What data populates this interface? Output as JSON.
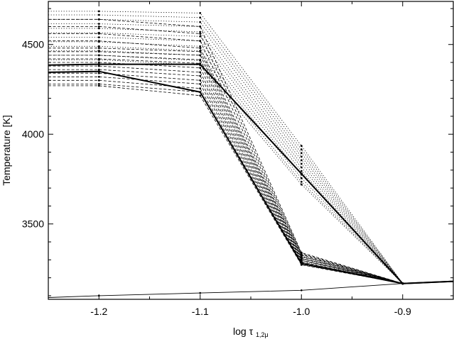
{
  "chart_data": {
    "type": "line",
    "title": "",
    "xlabel_main": "log  τ",
    "xlabel_sub": "1,2μ",
    "ylabel": "Temperature [K]",
    "xlim": [
      -1.25,
      -0.85
    ],
    "ylim": [
      3080,
      4740
    ],
    "xticks": [
      -1.2,
      -1.1,
      -1.0,
      -0.9
    ],
    "xtick_labels": [
      "-1.2",
      "-1.1",
      "-1.0",
      "-0.9"
    ],
    "yticks": [
      3500,
      4000,
      4500
    ],
    "ytick_labels": [
      "3500",
      "4000",
      "4500"
    ],
    "grid": false,
    "legend": "none",
    "series": [
      {
        "style": "thin-solid",
        "x": [
          -1.25,
          -1.2,
          -1.1,
          -1.0,
          -0.9,
          -0.85
        ],
        "y": [
          3090,
          3100,
          3115,
          3130,
          3168,
          3180
        ]
      },
      {
        "style": "thick-solid",
        "x": [
          -1.25,
          -1.2,
          -1.1,
          -1.0,
          -0.9,
          -0.85
        ],
        "y": [
          4385,
          4390,
          4390,
          3780,
          3168,
          3180
        ]
      },
      {
        "style": "thick-solid",
        "x": [
          -1.25,
          -1.2,
          -1.1,
          -1.0,
          -0.9,
          -0.85
        ],
        "y": [
          4345,
          4350,
          4235,
          3280,
          3168,
          3180
        ]
      },
      {
        "style": "dotted",
        "x": [
          -1.25,
          -1.2,
          -1.1,
          -1.0,
          -0.9
        ],
        "y": [
          4685,
          4685,
          4675,
          3935,
          3168
        ]
      },
      {
        "style": "dotted",
        "x": [
          -1.25,
          -1.2,
          -1.1,
          -1.0,
          -0.9
        ],
        "y": [
          4665,
          4665,
          4650,
          3915,
          3168
        ]
      },
      {
        "style": "dotted",
        "x": [
          -1.25,
          -1.2,
          -1.1,
          -1.0,
          -0.9
        ],
        "y": [
          4640,
          4640,
          4625,
          3895,
          3168
        ]
      },
      {
        "style": "dotted",
        "x": [
          -1.25,
          -1.2,
          -1.1,
          -1.0,
          -0.9
        ],
        "y": [
          4615,
          4615,
          4600,
          3875,
          3168
        ]
      },
      {
        "style": "dotted",
        "x": [
          -1.25,
          -1.2,
          -1.1,
          -1.0,
          -0.9
        ],
        "y": [
          4590,
          4590,
          4570,
          3855,
          3168
        ]
      },
      {
        "style": "dotted",
        "x": [
          -1.25,
          -1.2,
          -1.1,
          -1.0,
          -0.9
        ],
        "y": [
          4565,
          4565,
          4545,
          3835,
          3168
        ]
      },
      {
        "style": "dotted",
        "x": [
          -1.25,
          -1.2,
          -1.1,
          -1.0,
          -0.9
        ],
        "y": [
          4540,
          4540,
          4520,
          3815,
          3168
        ]
      },
      {
        "style": "dotted",
        "x": [
          -1.25,
          -1.2,
          -1.1,
          -1.0,
          -0.9
        ],
        "y": [
          4515,
          4515,
          4490,
          3795,
          3168
        ]
      },
      {
        "style": "dotted",
        "x": [
          -1.25,
          -1.2,
          -1.1,
          -1.0,
          -0.9
        ],
        "y": [
          4490,
          4490,
          4465,
          3775,
          3168
        ]
      },
      {
        "style": "dotted",
        "x": [
          -1.25,
          -1.2,
          -1.1,
          -1.0,
          -0.9
        ],
        "y": [
          4465,
          4465,
          4440,
          3755,
          3168
        ]
      },
      {
        "style": "dotted",
        "x": [
          -1.25,
          -1.2,
          -1.1,
          -1.0,
          -0.9
        ],
        "y": [
          4440,
          4440,
          4410,
          3735,
          3168
        ]
      },
      {
        "style": "dotted",
        "x": [
          -1.25,
          -1.2,
          -1.1,
          -1.0,
          -0.9
        ],
        "y": [
          4415,
          4415,
          4385,
          3720,
          3168
        ]
      },
      {
        "style": "dashed",
        "x": [
          -1.25,
          -1.2,
          -1.1,
          -1.0,
          -0.9
        ],
        "y": [
          4480,
          4480,
          4460,
          3320,
          3168
        ]
      },
      {
        "style": "dashed",
        "x": [
          -1.25,
          -1.2,
          -1.1,
          -1.0,
          -0.9
        ],
        "y": [
          4460,
          4460,
          4440,
          3315,
          3168
        ]
      },
      {
        "style": "dashed",
        "x": [
          -1.25,
          -1.2,
          -1.1,
          -1.0,
          -0.9
        ],
        "y": [
          4440,
          4440,
          4415,
          3310,
          3168
        ]
      },
      {
        "style": "dashed",
        "x": [
          -1.25,
          -1.2,
          -1.1,
          -1.0,
          -0.9
        ],
        "y": [
          4420,
          4420,
          4395,
          3305,
          3168
        ]
      },
      {
        "style": "dashed",
        "x": [
          -1.25,
          -1.2,
          -1.1,
          -1.0,
          -0.9
        ],
        "y": [
          4400,
          4400,
          4370,
          3300,
          3168
        ]
      },
      {
        "style": "dashed",
        "x": [
          -1.25,
          -1.2,
          -1.1,
          -1.0,
          -0.9
        ],
        "y": [
          4380,
          4380,
          4345,
          3295,
          3168
        ]
      },
      {
        "style": "dashed",
        "x": [
          -1.25,
          -1.2,
          -1.1,
          -1.0,
          -0.9
        ],
        "y": [
          4360,
          4360,
          4325,
          3290,
          3168
        ]
      },
      {
        "style": "dashed",
        "x": [
          -1.25,
          -1.2,
          -1.1,
          -1.0,
          -0.9
        ],
        "y": [
          4340,
          4340,
          4300,
          3285,
          3168
        ]
      },
      {
        "style": "dashed",
        "x": [
          -1.25,
          -1.2,
          -1.1,
          -1.0,
          -0.9
        ],
        "y": [
          4320,
          4320,
          4280,
          3280,
          3168
        ]
      },
      {
        "style": "dashed",
        "x": [
          -1.25,
          -1.2,
          -1.1,
          -1.0,
          -0.9
        ],
        "y": [
          4300,
          4300,
          4255,
          3278,
          3168
        ]
      },
      {
        "style": "dashed",
        "x": [
          -1.25,
          -1.2,
          -1.1,
          -1.0,
          -0.9
        ],
        "y": [
          4280,
          4280,
          4235,
          3275,
          3168
        ]
      },
      {
        "style": "dashed",
        "x": [
          -1.25,
          -1.2,
          -1.1,
          -1.0,
          -0.9
        ],
        "y": [
          4270,
          4270,
          4215,
          3272,
          3168
        ]
      },
      {
        "style": "dashed",
        "x": [
          -1.25,
          -1.2,
          -1.1,
          -1.0,
          -0.9
        ],
        "y": [
          4520,
          4520,
          4480,
          3325,
          3168
        ]
      },
      {
        "style": "dashed",
        "x": [
          -1.25,
          -1.2,
          -1.1,
          -1.0,
          -0.9
        ],
        "y": [
          4560,
          4560,
          4520,
          3330,
          3168
        ]
      },
      {
        "style": "dashed",
        "x": [
          -1.25,
          -1.2,
          -1.1,
          -1.0,
          -0.9
        ],
        "y": [
          4600,
          4600,
          4560,
          3335,
          3168
        ]
      },
      {
        "style": "dashed",
        "x": [
          -1.25,
          -1.2,
          -1.1,
          -1.0,
          -0.9
        ],
        "y": [
          4640,
          4640,
          4600,
          3340,
          3168
        ]
      }
    ]
  }
}
